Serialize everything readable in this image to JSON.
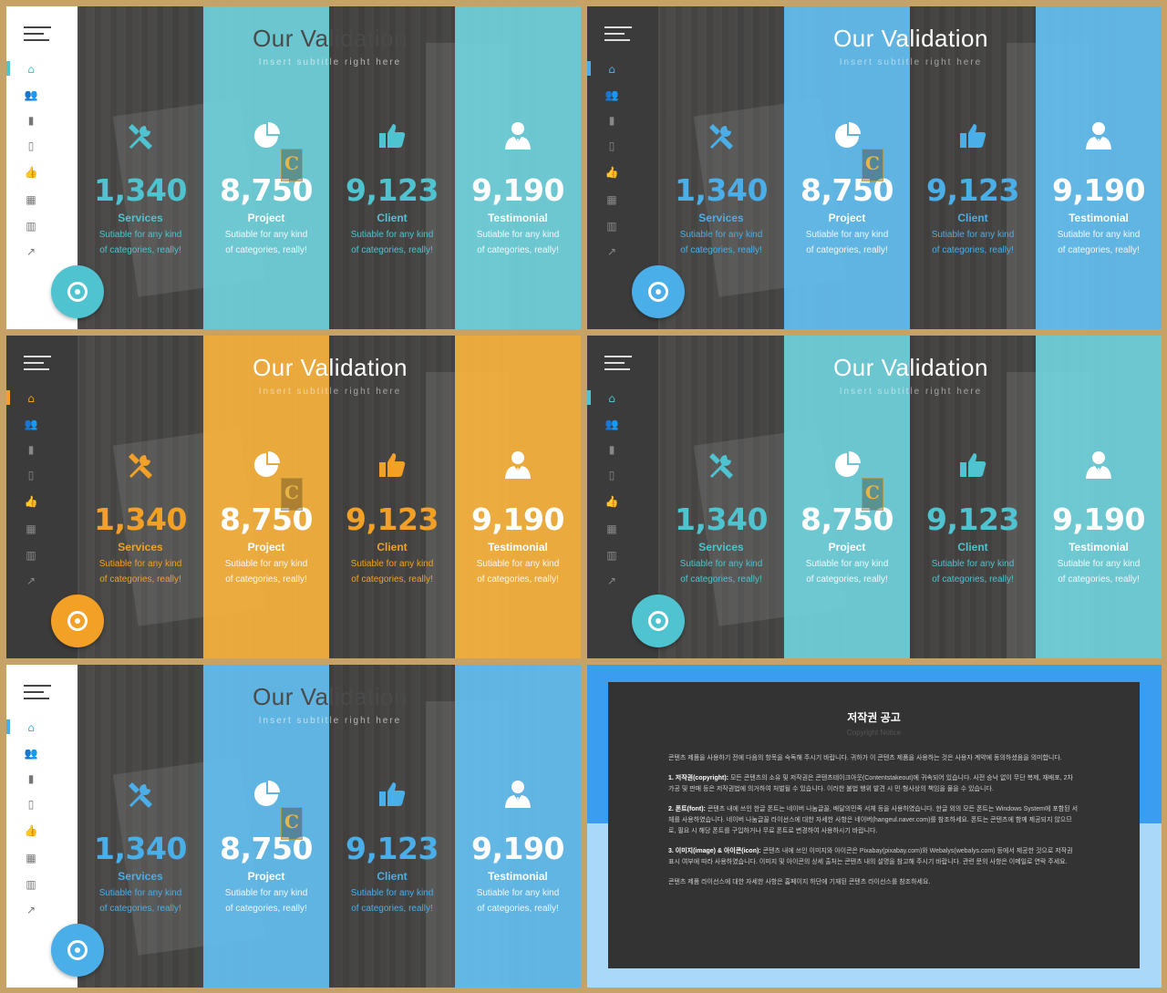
{
  "colors": {
    "teal": "#4fc3cf",
    "teal_light": "#6fd1db",
    "blue": "#4aaee8",
    "blue_light": "#63bdef",
    "orange": "#f2a126",
    "orange_light": "#f6b23d",
    "white": "#ffffff"
  },
  "slide": {
    "title": "Our Validation",
    "subtitle": "Insert subtitle right here",
    "stats": [
      {
        "icon": "tools-icon",
        "number": "1,340",
        "label": "Services",
        "desc1": "Sutiable for any kind",
        "desc2": "of categories, really!"
      },
      {
        "icon": "pie-chart-icon",
        "number": "8,750",
        "label": "Project",
        "desc1": "Sutiable for any kind",
        "desc2": "of categories, really!"
      },
      {
        "icon": "thumbs-up-icon",
        "number": "9,123",
        "label": "Client",
        "desc1": "Sutiable for any kind",
        "desc2": "of categories, really!"
      },
      {
        "icon": "user-tie-icon",
        "number": "9,190",
        "label": "Testimonial",
        "desc1": "Sutiable for any kind",
        "desc2": "of categories, really!"
      }
    ],
    "badge_letter": "C",
    "nav_icons": [
      "home-icon",
      "users-icon",
      "book-icon",
      "phone-icon",
      "like-icon",
      "grid-icon",
      "bar-chart-icon",
      "trend-icon"
    ]
  },
  "variants": [
    {
      "theme": "teal",
      "sidebar": "light"
    },
    {
      "theme": "blue",
      "sidebar": "dark"
    },
    {
      "theme": "orange",
      "sidebar": "dark"
    },
    {
      "theme": "teal",
      "sidebar": "dark"
    },
    {
      "theme": "blue",
      "sidebar": "light"
    }
  ],
  "notice": {
    "title": "저작권 공고",
    "subtitle": "Copyright Notice",
    "intro": "콘텐츠 제품을 사용하기 전에 다음의 항목을 숙독해 주시기 바랍니다. 귀하가 이 콘텐츠 제품을 사용하는 것은 사용자 계약에 동의하셨음을 의미합니다.",
    "p1_head": "1. 저작권(copyright):",
    "p1": "모든 콘텐츠의 소유 및 저작권은 콘텐츠테이크아웃(Contentstakeout)에 귀속되어 있습니다. 사전 승낙 없이 무단 복제, 재배포, 2차 가공 및 판매 등은 저작권법에 의거하여 처벌될 수 있습니다. 이러한 불법 행위 발견 시 민·형사상의 책임을 물을 수 있습니다.",
    "p2_head": "2. 폰트(font):",
    "p2": "콘텐츠 내에 쓰인 한글 폰트는 네이버 나눔글꼴, 배달의민족 서체 등을 사용하였습니다. 한글 외의 모든 폰트는 Windows System에 포함된 서체를 사용하였습니다. 네이버 나눔글꼴 라이선스에 대한 자세한 사항은 네이버(hangeul.naver.com)를 참조하세요. 폰트는 콘텐츠에 함께 제공되지 않으므로, 필요 시 해당 폰트를 구입하거나 무료 폰트로 변경하여 사용하시기 바랍니다.",
    "p3_head": "3. 이미지(image) & 아이콘(icon):",
    "p3": "콘텐츠 내에 쓰인 이미지와 아이콘은 Pixabay(pixabay.com)와 Webalys(webalys.com) 등에서 제공한 것으로 저작권 표시 여부에 따라 사용하였습니다. 이미지 및 아이콘의 상세 출처는 콘텐츠 내의 설명을 참고해 주시기 바랍니다. 관련 문의 사항은 이메일로 연락 주세요.",
    "outro": "콘텐츠 제품 라이선스에 대한 자세한 사항은 홈페이지 하단에 기재된 콘텐츠 라이선스를 참조하세요."
  }
}
